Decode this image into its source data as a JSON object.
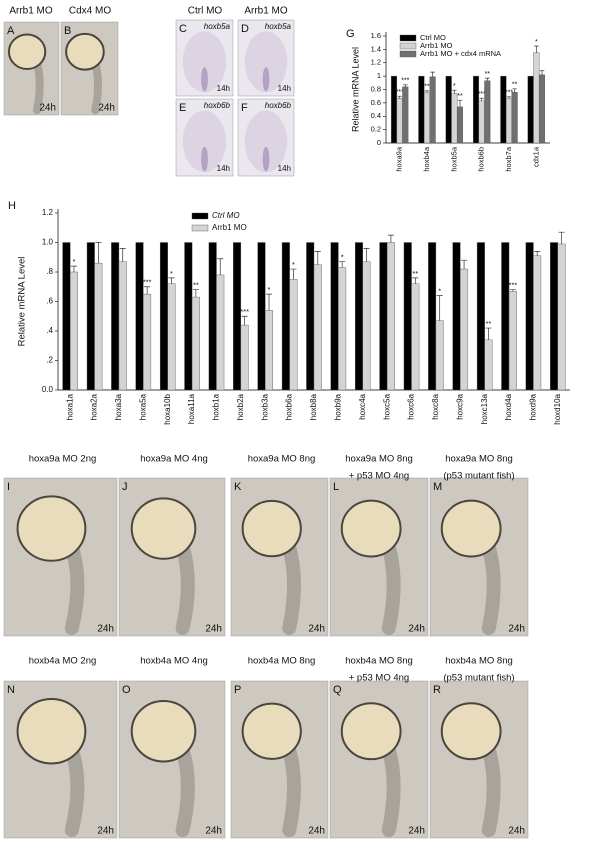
{
  "chart_data": [
    {
      "type": "bar",
      "panel": "G",
      "y_label": "Relative mRNA Level",
      "categories": [
        "hoxa9a",
        "hoxb4a",
        "hoxb5a",
        "hoxb6b",
        "hoxb7a",
        "cdx1a"
      ],
      "series": [
        {
          "name": "Ctrl MO",
          "color": "#000000",
          "values": [
            1,
            1,
            1,
            1,
            1,
            1
          ],
          "errors": [
            0,
            0,
            0,
            0,
            0,
            0
          ]
        },
        {
          "name": "Arrb1 MO",
          "color": "#d4d4d4",
          "values": [
            0.67,
            0.75,
            0.74,
            0.63,
            0.66,
            1.35
          ],
          "errors": [
            0.03,
            0.03,
            0.05,
            0.04,
            0.03,
            0.1
          ],
          "annotations": [
            "***",
            "**",
            "*",
            "***",
            "***",
            "*"
          ]
        },
        {
          "name": "Arrb1 MO + cdx4 mRNA",
          "color": "#707070",
          "values": [
            0.84,
            0.99,
            0.54,
            0.93,
            0.76,
            1.02
          ],
          "errors": [
            0.03,
            0.07,
            0.1,
            0.04,
            0.05,
            0.06
          ],
          "annotations": [
            "***",
            null,
            "**",
            "**",
            "**",
            null
          ]
        }
      ],
      "ylim": [
        0,
        1.6
      ],
      "yticks": [
        0,
        0.2,
        0.4,
        0.6,
        0.8,
        1,
        1.2,
        1.4,
        1.6
      ],
      "grid": false,
      "legend": "top-left"
    },
    {
      "type": "bar",
      "panel": "H",
      "y_label": "Relative mRNA Level",
      "categories": [
        "hoxa1a",
        "hoxa2a",
        "hoxa3a",
        "hoxa5a",
        "hoxa10b",
        "hoxa11a",
        "hoxb1a",
        "hoxb2a",
        "hoxb3a",
        "hoxb6a",
        "hoxb8a",
        "hoxb9a",
        "hoxc4a",
        "hoxc5a",
        "hoxc6a",
        "hoxc8a",
        "hoxc9a",
        "hoxc13a",
        "hoxd4a",
        "hoxd9a",
        "hoxd10a"
      ],
      "series": [
        {
          "name": "Ctrl MO",
          "color": "#000000",
          "values": [
            1,
            1,
            1,
            1,
            1,
            1,
            1,
            1,
            1,
            1,
            1,
            1,
            1,
            1,
            1,
            1,
            1,
            1,
            1,
            1,
            1
          ],
          "errors": [
            0,
            0,
            0,
            0,
            0,
            0,
            0,
            0,
            0,
            0,
            0,
            0,
            0,
            0,
            0,
            0,
            0,
            0,
            0,
            0,
            0
          ]
        },
        {
          "name": "Arrb1 MO",
          "color": "#d4d4d4",
          "values": [
            0.8,
            0.86,
            0.87,
            0.65,
            0.72,
            0.63,
            0.78,
            0.44,
            0.54,
            0.75,
            0.85,
            0.83,
            0.87,
            1.0,
            0.72,
            0.47,
            0.82,
            0.34,
            0.67,
            0.91,
            0.99
          ],
          "errors": [
            0.04,
            0.14,
            0.09,
            0.05,
            0.04,
            0.05,
            0.11,
            0.06,
            0.11,
            0.07,
            0.09,
            0.04,
            0.09,
            0.05,
            0.04,
            0.17,
            0.06,
            0.08,
            0.01,
            0.03,
            0.08
          ],
          "annotations": [
            "*",
            null,
            null,
            "***",
            "*",
            "**",
            null,
            "***",
            "*",
            "*",
            null,
            "*",
            null,
            null,
            "**",
            "*",
            null,
            "**",
            "***",
            null,
            null
          ]
        }
      ],
      "ylim": [
        0,
        1.2
      ],
      "yticks": [
        {
          "value": 0,
          "label": "0.0"
        },
        {
          "value": 0.2,
          "label": ".2"
        },
        {
          "value": 0.4,
          "label": ".4"
        },
        {
          "value": 0.6,
          "label": ".6"
        },
        {
          "value": 0.8,
          "label": ".8"
        },
        {
          "value": 1,
          "label": "1.0"
        },
        {
          "value": 1.2,
          "label": "1.2"
        }
      ],
      "grid": false,
      "legend": "top-left"
    }
  ],
  "headers": [
    "Arrb1 MO",
    "Cdx4 MO",
    "Ctrl MO",
    "Arrb1 MO"
  ],
  "panels": [
    {
      "letter": "A",
      "time": "24h"
    },
    {
      "letter": "B",
      "time": "24h"
    },
    {
      "letter": "C",
      "time": "14h",
      "stain": "hoxb5a"
    },
    {
      "letter": "D",
      "time": "14h",
      "stain": "hoxb5a"
    },
    {
      "letter": "E",
      "time": "14h",
      "stain": "hoxb6b"
    },
    {
      "letter": "F",
      "time": "14h",
      "stain": "hoxb6b"
    },
    {
      "letter": "I",
      "time": "24h"
    },
    {
      "letter": "J",
      "time": "24h"
    },
    {
      "letter": "K",
      "time": "24h"
    },
    {
      "letter": "L",
      "time": "24h"
    },
    {
      "letter": "M",
      "time": "24h"
    },
    {
      "letter": "N",
      "time": "24h"
    },
    {
      "letter": "O",
      "time": "24h"
    },
    {
      "letter": "P",
      "time": "24h"
    },
    {
      "letter": "Q",
      "time": "24h"
    },
    {
      "letter": "R",
      "time": "24h"
    }
  ],
  "captions": [
    [
      "hoxa9a MO 2ng"
    ],
    [
      "hoxa9a MO 4ng"
    ],
    [
      "hoxa9a MO 8ng"
    ],
    [
      "hoxa9a MO 8ng",
      "+ p53 MO 4ng"
    ],
    [
      "hoxa9a MO 8ng",
      "(p53 mutant fish)"
    ],
    [
      "hoxb4a MO 2ng"
    ],
    [
      "hoxb4a MO 4ng"
    ],
    [
      "hoxb4a MO 8ng"
    ],
    [
      "hoxb4a MO 8ng",
      "+ p53 MO 4ng"
    ],
    [
      "hoxb4a MO 8ng",
      "(p53 mutant fish)"
    ]
  ]
}
